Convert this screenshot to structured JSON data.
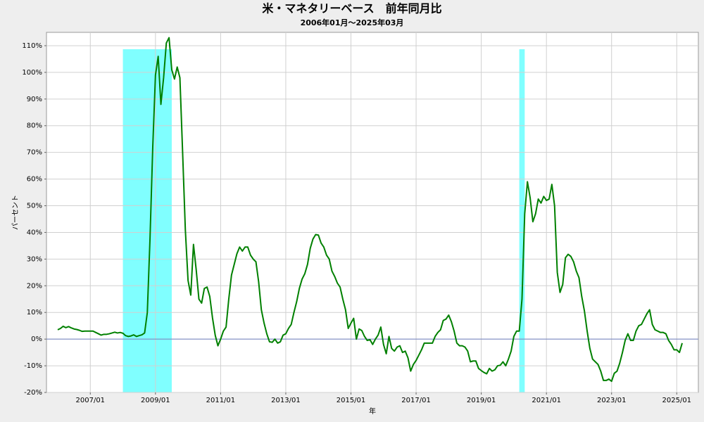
{
  "chart_data": {
    "type": "line",
    "title": "米・マネタリーベース　前年同月比",
    "subtitle": "2006年01月～2025年03月",
    "y_label": "パーセント",
    "x_label": "年",
    "x": [
      "2006/01",
      "2006/02",
      "2006/03",
      "2006/04",
      "2006/05",
      "2006/06",
      "2006/07",
      "2006/08",
      "2006/09",
      "2006/10",
      "2006/11",
      "2006/12",
      "2007/01",
      "2007/02",
      "2007/03",
      "2007/04",
      "2007/05",
      "2007/06",
      "2007/07",
      "2007/08",
      "2007/09",
      "2007/10",
      "2007/11",
      "2007/12",
      "2008/01",
      "2008/02",
      "2008/03",
      "2008/04",
      "2008/05",
      "2008/06",
      "2008/07",
      "2008/08",
      "2008/09",
      "2008/10",
      "2008/11",
      "2008/12",
      "2009/01",
      "2009/02",
      "2009/03",
      "2009/04",
      "2009/05",
      "2009/06",
      "2009/07",
      "2009/08",
      "2009/09",
      "2009/10",
      "2009/11",
      "2009/12",
      "2010/01",
      "2010/02",
      "2010/03",
      "2010/04",
      "2010/05",
      "2010/06",
      "2010/07",
      "2010/08",
      "2010/09",
      "2010/10",
      "2010/11",
      "2010/12",
      "2011/01",
      "2011/02",
      "2011/03",
      "2011/04",
      "2011/05",
      "2011/06",
      "2011/07",
      "2011/08",
      "2011/09",
      "2011/10",
      "2011/11",
      "2011/12",
      "2012/01",
      "2012/02",
      "2012/03",
      "2012/04",
      "2012/05",
      "2012/06",
      "2012/07",
      "2012/08",
      "2012/09",
      "2012/10",
      "2012/11",
      "2012/12",
      "2013/01",
      "2013/02",
      "2013/03",
      "2013/04",
      "2013/05",
      "2013/06",
      "2013/07",
      "2013/08",
      "2013/09",
      "2013/10",
      "2013/11",
      "2013/12",
      "2014/01",
      "2014/02",
      "2014/03",
      "2014/04",
      "2014/05",
      "2014/06",
      "2014/07",
      "2014/08",
      "2014/09",
      "2014/10",
      "2014/11",
      "2014/12",
      "2015/01",
      "2015/02",
      "2015/03",
      "2015/04",
      "2015/05",
      "2015/06",
      "2015/07",
      "2015/08",
      "2015/09",
      "2015/10",
      "2015/11",
      "2015/12",
      "2016/01",
      "2016/02",
      "2016/03",
      "2016/04",
      "2016/05",
      "2016/06",
      "2016/07",
      "2016/08",
      "2016/09",
      "2016/10",
      "2016/11",
      "2016/12",
      "2017/01",
      "2017/02",
      "2017/03",
      "2017/04",
      "2017/05",
      "2017/06",
      "2017/07",
      "2017/08",
      "2017/09",
      "2017/10",
      "2017/11",
      "2017/12",
      "2018/01",
      "2018/02",
      "2018/03",
      "2018/04",
      "2018/05",
      "2018/06",
      "2018/07",
      "2018/08",
      "2018/09",
      "2018/10",
      "2018/11",
      "2018/12",
      "2019/01",
      "2019/02",
      "2019/03",
      "2019/04",
      "2019/05",
      "2019/06",
      "2019/07",
      "2019/08",
      "2019/09",
      "2019/10",
      "2019/11",
      "2019/12",
      "2020/01",
      "2020/02",
      "2020/03",
      "2020/04",
      "2020/05",
      "2020/06",
      "2020/07",
      "2020/08",
      "2020/09",
      "2020/10",
      "2020/11",
      "2020/12",
      "2021/01",
      "2021/02",
      "2021/03",
      "2021/04",
      "2021/05",
      "2021/06",
      "2021/07",
      "2021/08",
      "2021/09",
      "2021/10",
      "2021/11",
      "2021/12",
      "2022/01",
      "2022/02",
      "2022/03",
      "2022/04",
      "2022/05",
      "2022/06",
      "2022/07",
      "2022/08",
      "2022/09",
      "2022/10",
      "2022/11",
      "2022/12",
      "2023/01",
      "2023/02",
      "2023/03",
      "2023/04",
      "2023/05",
      "2023/06",
      "2023/07",
      "2023/08",
      "2023/09",
      "2023/10",
      "2023/11",
      "2023/12",
      "2024/01",
      "2024/02",
      "2024/03",
      "2024/04",
      "2024/05",
      "2024/06",
      "2024/07",
      "2024/08",
      "2024/09",
      "2024/10",
      "2024/11",
      "2024/12",
      "2025/01",
      "2025/02",
      "2025/03"
    ],
    "series": [
      {
        "color": "#008000",
        "values": [
          3.5,
          4,
          4.8,
          4.3,
          4.7,
          4.2,
          3.8,
          3.6,
          3.3,
          2.9,
          3,
          3,
          3,
          3,
          2.5,
          2,
          1.5,
          1.8,
          1.8,
          2,
          2.3,
          2.6,
          2.3,
          2.5,
          2.2,
          1.3,
          1,
          1.2,
          1.6,
          1,
          1.3,
          1.6,
          2.3,
          10,
          38,
          72,
          99,
          106,
          88,
          98,
          111,
          113,
          101,
          97.5,
          102,
          98,
          70,
          41,
          22,
          16.5,
          35.5,
          26,
          15,
          13.5,
          19,
          19.5,
          16,
          8,
          1.5,
          -2.5,
          0,
          3,
          4.5,
          15,
          24,
          28,
          32,
          34.5,
          33,
          34.5,
          34.5,
          31.5,
          30,
          29,
          21.5,
          11,
          6,
          2,
          -1,
          -1.2,
          0,
          -1.5,
          -1,
          1.5,
          2,
          4,
          5.5,
          10,
          14,
          19,
          22.5,
          24.5,
          28,
          34,
          37.5,
          39.2,
          39,
          36,
          34.5,
          31.5,
          30,
          25.5,
          23.5,
          21,
          19.5,
          15,
          11,
          4,
          6,
          7.8,
          0,
          3.8,
          3.2,
          1,
          -0.5,
          -0.2,
          -2,
          0,
          1.5,
          4.5,
          -2,
          -5.5,
          1,
          -3.5,
          -4.5,
          -3,
          -2.5,
          -5,
          -4.5,
          -7,
          -12,
          -9.5,
          -8,
          -6,
          -4,
          -1.5,
          -1.5,
          -1.5,
          -1.5,
          1,
          2.5,
          3.5,
          7,
          7.5,
          9,
          6.5,
          3,
          -1.5,
          -2.5,
          -2.5,
          -3,
          -4.5,
          -8.5,
          -8.2,
          -8.2,
          -11,
          -11.8,
          -12.5,
          -13,
          -11,
          -12,
          -11.5,
          -10,
          -9.8,
          -8.5,
          -10,
          -7.5,
          -4.5,
          1,
          3,
          3,
          15,
          47,
          59,
          53,
          44,
          47,
          52.5,
          51,
          53.5,
          52,
          52.5,
          58,
          50,
          25,
          17.5,
          20.5,
          30.5,
          31.8,
          31,
          29,
          25.5,
          23,
          16,
          10.5,
          3,
          -3.5,
          -7.5,
          -8.5,
          -9.5,
          -12,
          -15.5,
          -15.5,
          -15,
          -15.8,
          -12.8,
          -12,
          -9,
          -5,
          -0.5,
          2,
          -0.5,
          -0.5,
          3,
          5,
          5.5,
          7.5,
          9.5,
          11,
          5.5,
          3.5,
          3,
          2.5,
          2.5,
          2,
          -0.5,
          -2,
          -4,
          -4,
          -5,
          -1.5
        ]
      }
    ],
    "shaded_ranges": [
      {
        "start": "2008/01",
        "end": "2009/07"
      },
      {
        "start": "2020/03",
        "end": "2020/05"
      }
    ],
    "shade_color": "#80ffff",
    "reference_line": 0,
    "ylim": [
      -20,
      115
    ],
    "yticks": [
      {
        "value": -20,
        "label": "-20%"
      },
      {
        "value": -10,
        "label": "-10%"
      },
      {
        "value": 0,
        "label": "0%"
      },
      {
        "value": 10,
        "label": "10%"
      },
      {
        "value": 20,
        "label": "20%"
      },
      {
        "value": 30,
        "label": "30%"
      },
      {
        "value": 40,
        "label": "40%"
      },
      {
        "value": 50,
        "label": "50%"
      },
      {
        "value": 60,
        "label": "60%"
      },
      {
        "value": 70,
        "label": "70%"
      },
      {
        "value": 80,
        "label": "80%"
      },
      {
        "value": 90,
        "label": "90%"
      },
      {
        "value": 100,
        "label": "100%"
      },
      {
        "value": 110,
        "label": "110%"
      }
    ],
    "xticks": [
      "2007/01",
      "2009/01",
      "2011/01",
      "2013/01",
      "2015/01",
      "2017/01",
      "2019/01",
      "2021/01",
      "2023/01",
      "2025/01"
    ],
    "grid": true
  }
}
